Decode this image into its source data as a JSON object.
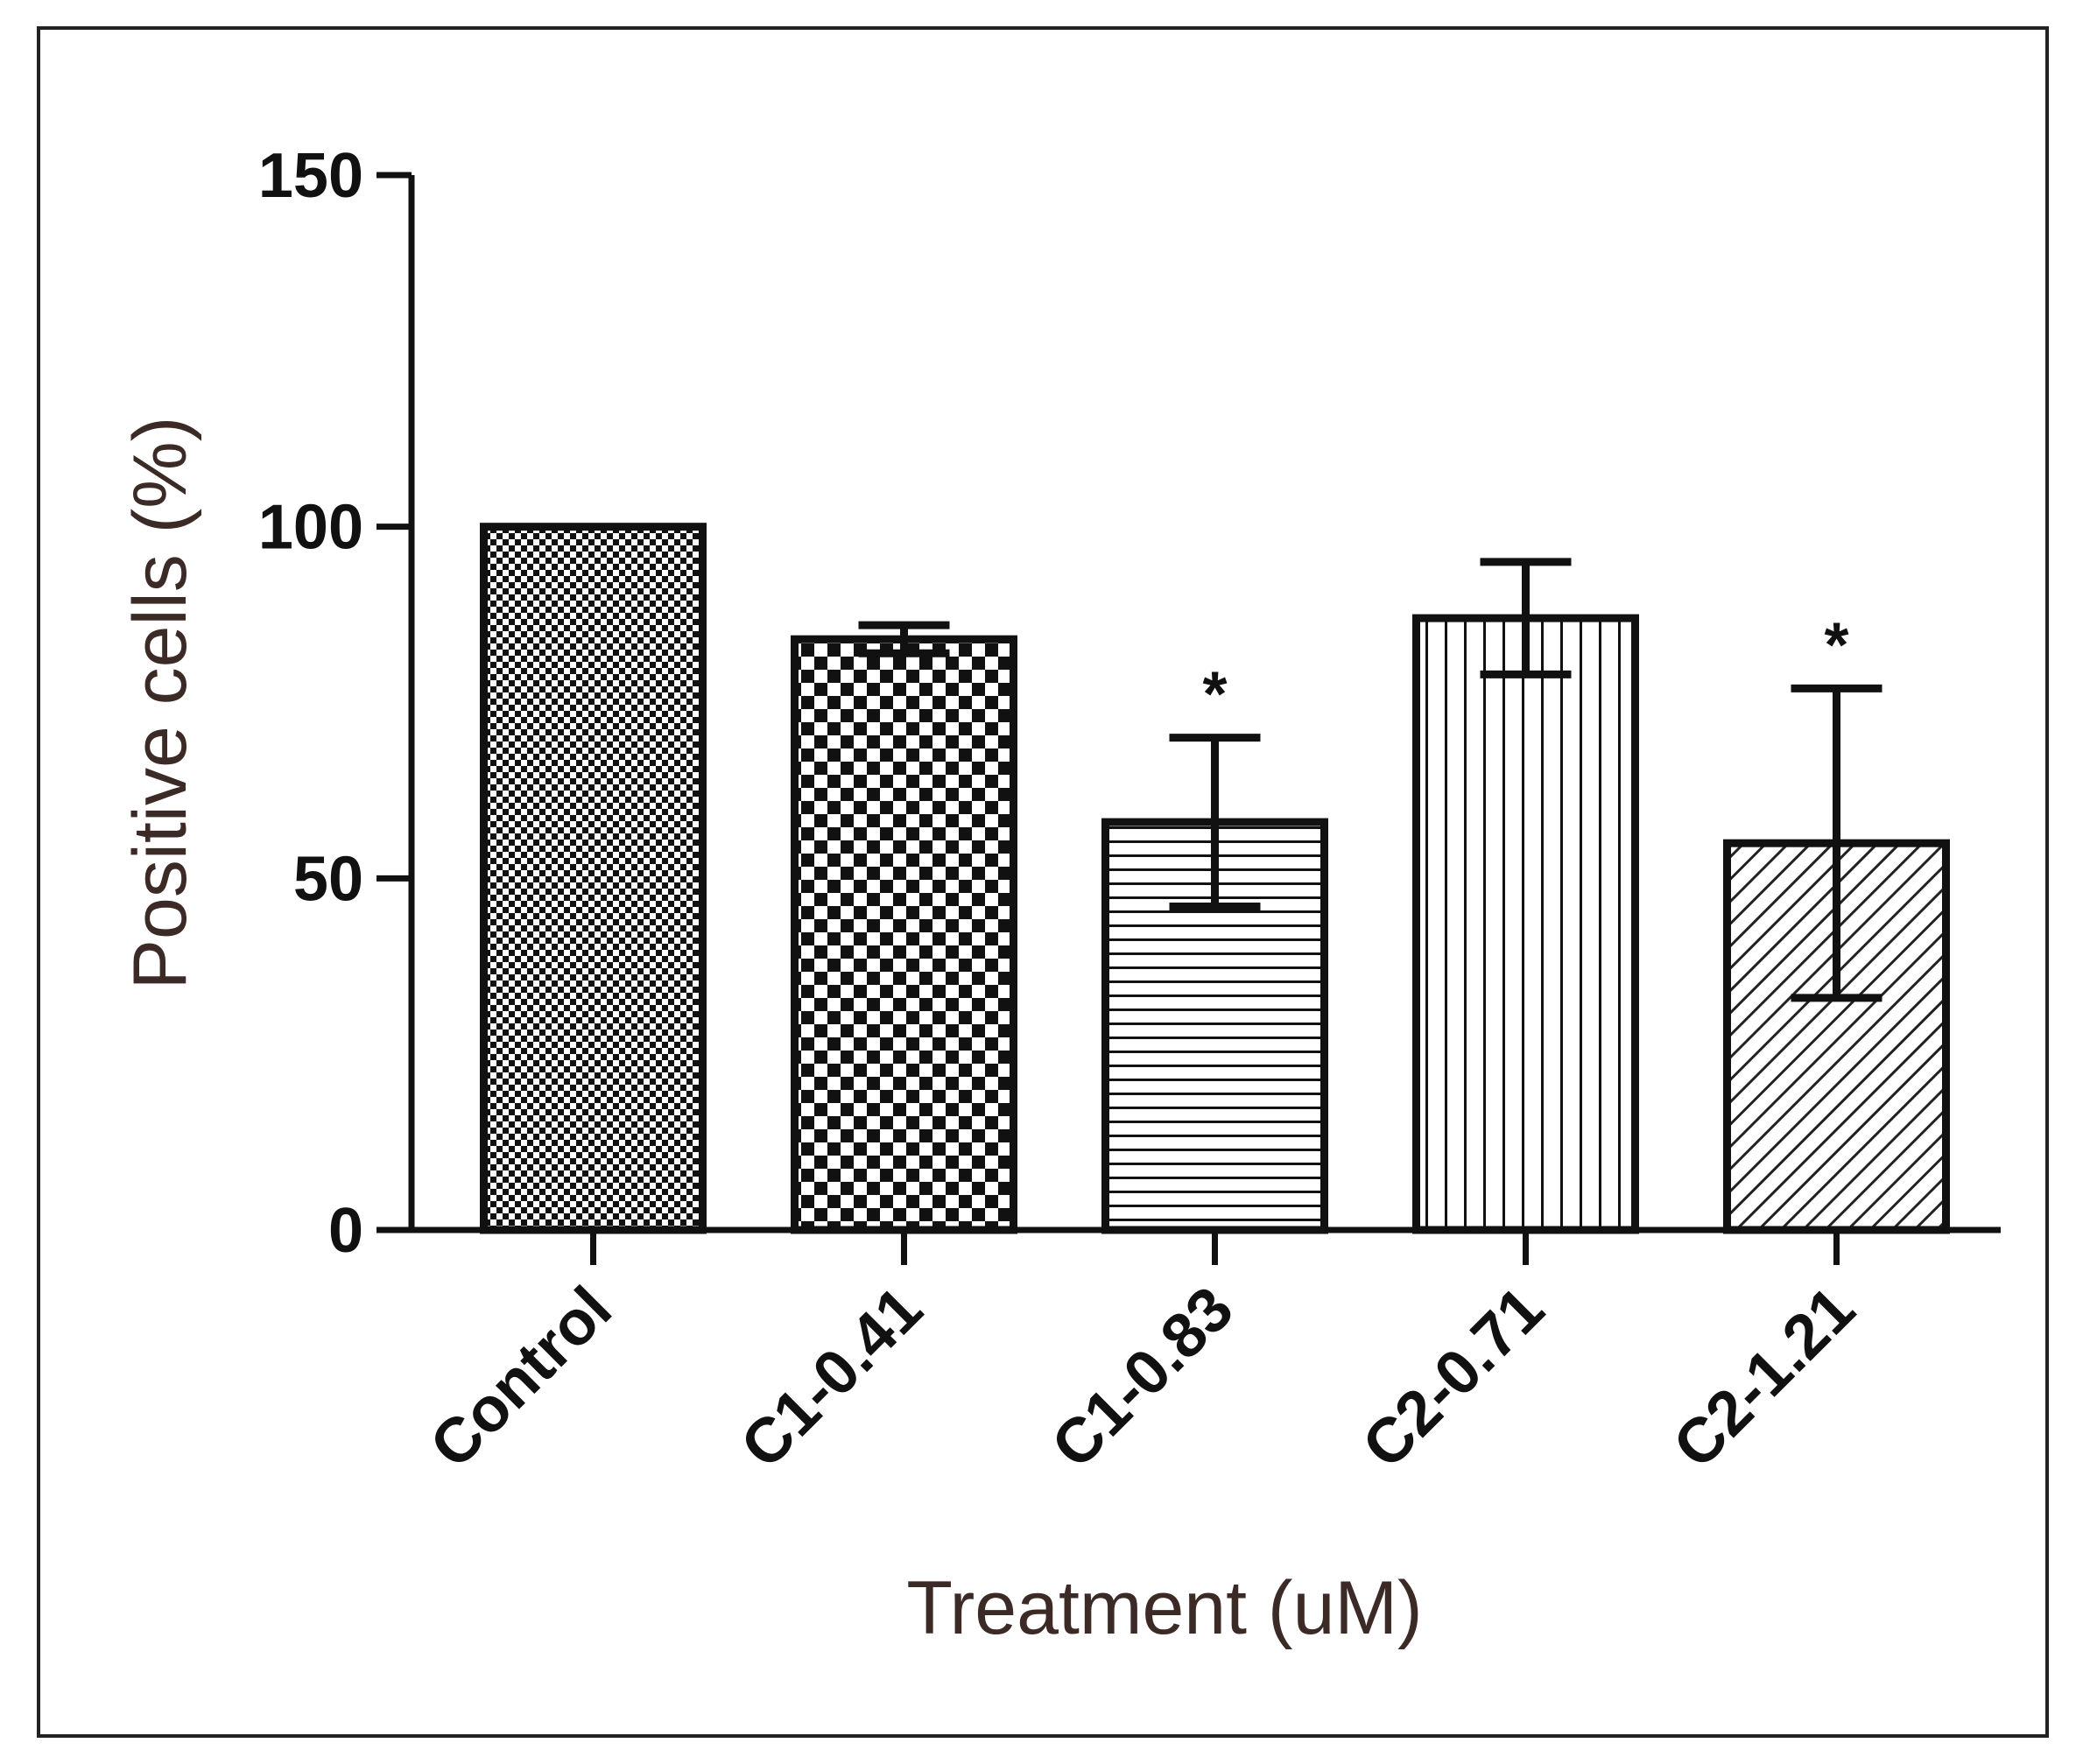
{
  "chart_data": {
    "type": "bar",
    "title": "",
    "xlabel": "Treatment (uM)",
    "ylabel": "Positive cells (%)",
    "ylim": [
      0,
      150
    ],
    "yticks": [
      "0",
      "50",
      "100",
      "150"
    ],
    "grid": false,
    "categories": [
      "Control",
      "C1-0.41",
      "C1-0.83",
      "C2-0.71",
      "C2-1.21"
    ],
    "values": [
      100,
      84,
      58,
      87,
      55
    ],
    "error_plus": [
      0,
      2,
      12,
      8,
      22
    ],
    "error_minus": [
      0,
      2,
      12,
      8,
      22
    ],
    "annotations": [
      "",
      "",
      "*",
      "",
      "*"
    ],
    "patterns": [
      "fine-check",
      "checker",
      "horizontal-lines",
      "vertical-lines",
      "diagonal-lines"
    ]
  }
}
